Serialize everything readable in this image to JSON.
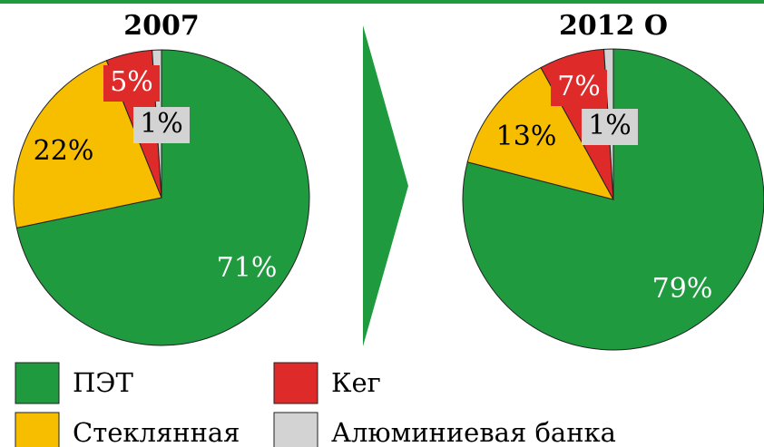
{
  "chart_data": [
    {
      "type": "pie",
      "title": "2007",
      "categories": [
        "ПЭТ",
        "Стеклянная",
        "Кег",
        "Алюминиевая банка"
      ],
      "values": [
        71,
        22,
        5,
        1
      ],
      "value_labels": [
        "71%",
        "22%",
        "5%",
        "1%"
      ],
      "colors": [
        "#1f9a3f",
        "#f7be00",
        "#df2a2a",
        "#d3d3d3"
      ]
    },
    {
      "type": "pie",
      "title": "2012 О",
      "categories": [
        "ПЭТ",
        "Стеклянная",
        "Кег",
        "Алюминиевая банка"
      ],
      "values": [
        79,
        13,
        7,
        1
      ],
      "value_labels": [
        "79%",
        "13%",
        "7%",
        "1%"
      ],
      "colors": [
        "#1f9a3f",
        "#f7be00",
        "#df2a2a",
        "#d3d3d3"
      ]
    }
  ]
}
